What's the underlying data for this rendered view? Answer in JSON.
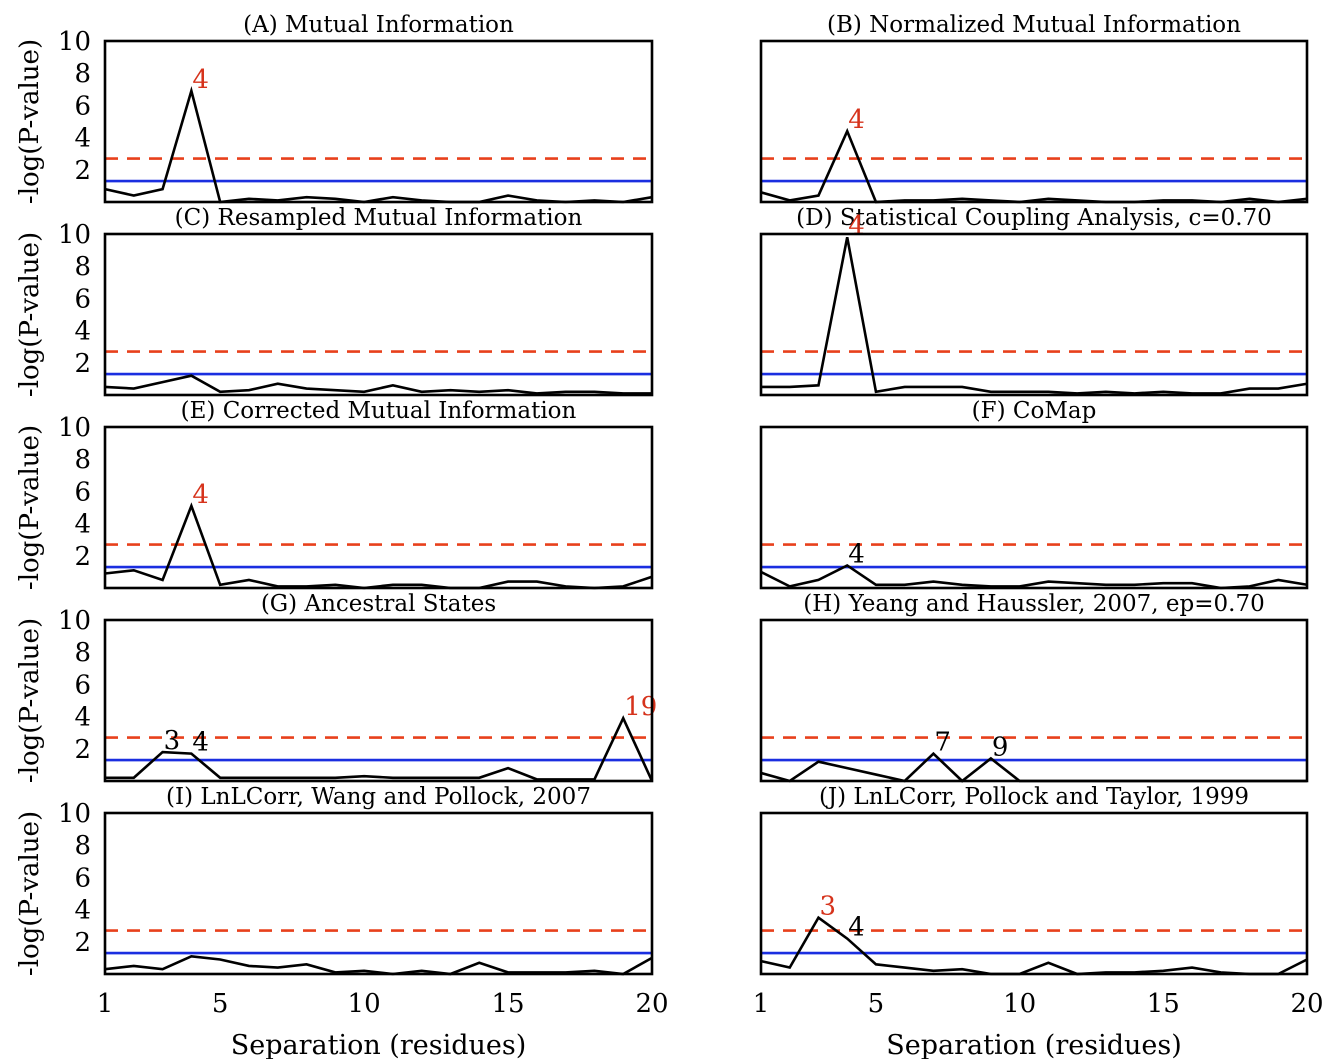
{
  "chart_data": {
    "type": "line",
    "x": [
      1,
      2,
      3,
      4,
      5,
      6,
      7,
      8,
      9,
      10,
      11,
      12,
      13,
      14,
      15,
      16,
      17,
      18,
      19,
      20
    ],
    "xlim": [
      1,
      20
    ],
    "ylim": [
      0,
      10
    ],
    "xticks": [
      "1",
      "5",
      "10",
      "15",
      "20"
    ],
    "yticks": [
      "2",
      "4",
      "6",
      "8",
      "10"
    ],
    "xlabel": "Separation (residues)",
    "ylabel": "-log(P-value)",
    "thresholds": {
      "dashed_red": 2.7,
      "solid_blue": 1.3
    },
    "colors": {
      "line": "#000000",
      "dashed": "#e8401c",
      "solid": "#1a2ee0",
      "highlight": "#d6331c",
      "plain_label": "#000000"
    },
    "panels": [
      {
        "title": "(A) Mutual Information",
        "values": [
          0.8,
          0.4,
          0.8,
          6.9,
          0.0,
          0.2,
          0.1,
          0.3,
          0.2,
          0.0,
          0.3,
          0.1,
          0.0,
          0.0,
          0.4,
          0.1,
          0.0,
          0.1,
          0.0,
          0.3
        ],
        "annotations": [
          {
            "text": "4",
            "x": 4,
            "y": 6.9,
            "color": "red"
          }
        ]
      },
      {
        "title": "(B) Normalized Mutual Information",
        "values": [
          0.6,
          0.1,
          0.4,
          4.4,
          0.0,
          0.1,
          0.1,
          0.2,
          0.1,
          0.0,
          0.2,
          0.1,
          0.0,
          0.0,
          0.1,
          0.1,
          0.0,
          0.2,
          0.0,
          0.2
        ],
        "annotations": [
          {
            "text": "4",
            "x": 4,
            "y": 4.4,
            "color": "red"
          }
        ]
      },
      {
        "title": "(C) Resampled Mutual Information",
        "values": [
          0.5,
          0.4,
          0.8,
          1.2,
          0.2,
          0.3,
          0.7,
          0.4,
          0.3,
          0.2,
          0.6,
          0.2,
          0.3,
          0.2,
          0.3,
          0.1,
          0.2,
          0.2,
          0.1,
          0.1
        ],
        "annotations": []
      },
      {
        "title": "(D) Statistical Coupling Analysis, c=0.70",
        "values": [
          0.5,
          0.5,
          0.6,
          9.8,
          0.2,
          0.5,
          0.5,
          0.5,
          0.2,
          0.2,
          0.2,
          0.1,
          0.2,
          0.1,
          0.2,
          0.1,
          0.1,
          0.4,
          0.4,
          0.7
        ],
        "annotations": [
          {
            "text": "4",
            "x": 4,
            "y": 9.8,
            "color": "red"
          }
        ]
      },
      {
        "title": "(E) Corrected Mutual Information",
        "values": [
          0.9,
          1.1,
          0.5,
          5.1,
          0.2,
          0.5,
          0.1,
          0.1,
          0.2,
          0.0,
          0.2,
          0.2,
          0.0,
          0.0,
          0.4,
          0.4,
          0.1,
          0.0,
          0.1,
          0.7
        ],
        "annotations": [
          {
            "text": "4",
            "x": 4,
            "y": 5.1,
            "color": "red"
          }
        ]
      },
      {
        "title": "(F) CoMap",
        "values": [
          1.0,
          0.1,
          0.5,
          1.4,
          0.2,
          0.2,
          0.4,
          0.2,
          0.1,
          0.1,
          0.4,
          0.3,
          0.2,
          0.2,
          0.3,
          0.3,
          0.0,
          0.1,
          0.5,
          0.2
        ],
        "annotations": [
          {
            "text": "4",
            "x": 4,
            "y": 1.4,
            "color": "black"
          }
        ]
      },
      {
        "title": "(G) Ancestral States",
        "values": [
          0.2,
          0.2,
          1.8,
          1.7,
          0.2,
          0.2,
          0.2,
          0.2,
          0.2,
          0.3,
          0.2,
          0.2,
          0.2,
          0.2,
          0.8,
          0.1,
          0.1,
          0.1,
          3.9,
          0.0
        ],
        "annotations": [
          {
            "text": "3",
            "x": 3,
            "y": 1.8,
            "color": "black"
          },
          {
            "text": "4",
            "x": 4,
            "y": 1.7,
            "color": "black"
          },
          {
            "text": "19",
            "x": 19,
            "y": 3.9,
            "color": "red"
          }
        ]
      },
      {
        "title": "(H) Yeang and Haussler, 2007, ep=0.70",
        "values": [
          0.5,
          0.0,
          1.2,
          0.8,
          0.4,
          0.0,
          1.7,
          0.0,
          1.4,
          0.0,
          0.0,
          0.0,
          0.0,
          0.0,
          0.0,
          0.0,
          0.0,
          0.0,
          0.0,
          0.0
        ],
        "annotations": [
          {
            "text": "7",
            "x": 7,
            "y": 1.7,
            "color": "black"
          },
          {
            "text": "9",
            "x": 9,
            "y": 1.4,
            "color": "black"
          }
        ]
      },
      {
        "title": "(I) LnLCorr, Wang and Pollock, 2007",
        "values": [
          0.3,
          0.5,
          0.3,
          1.1,
          0.9,
          0.5,
          0.4,
          0.6,
          0.1,
          0.2,
          0.0,
          0.2,
          0.0,
          0.7,
          0.1,
          0.1,
          0.1,
          0.2,
          0.0,
          1.0
        ],
        "annotations": []
      },
      {
        "title": "(J) LnLCorr, Pollock and Taylor, 1999",
        "values": [
          0.8,
          0.4,
          3.5,
          2.2,
          0.6,
          0.4,
          0.2,
          0.3,
          0.0,
          0.0,
          0.7,
          0.0,
          0.1,
          0.1,
          0.2,
          0.4,
          0.1,
          0.0,
          0.0,
          0.9
        ],
        "annotations": [
          {
            "text": "3",
            "x": 3,
            "y": 3.5,
            "color": "red"
          },
          {
            "text": "4",
            "x": 4,
            "y": 2.2,
            "color": "black"
          }
        ]
      }
    ]
  }
}
